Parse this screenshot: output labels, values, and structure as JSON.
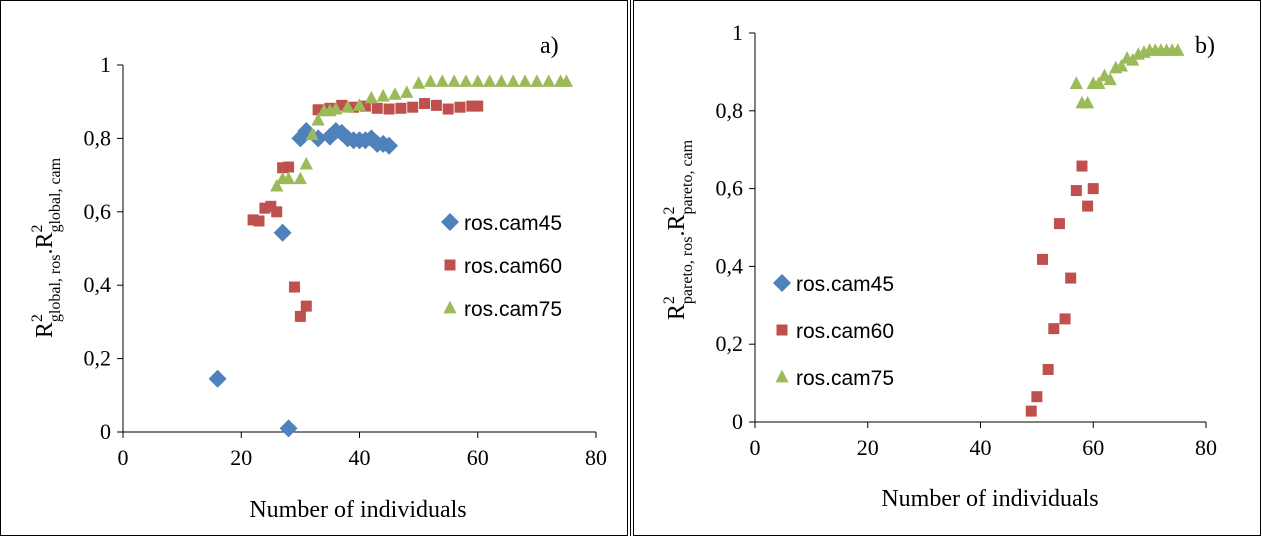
{
  "colors": {
    "ros.cam45": "#4f81bd",
    "ros.cam60": "#c0504d",
    "ros.cam75": "#9bbb59"
  },
  "chart_data": [
    {
      "type": "scatter",
      "panel_label": "a)",
      "xlabel": "Number of individuals",
      "ylabel": {
        "base": "R",
        "sup1": "2",
        "sub1": "global, ros",
        "sep": ".R",
        "sup2": "2",
        "sub2": "global, cam"
      },
      "xlim": [
        0,
        80
      ],
      "ylim": [
        0,
        1
      ],
      "xticks": [
        "0",
        "20",
        "40",
        "60",
        "80"
      ],
      "yticks": [
        "0",
        "0,2",
        "0,4",
        "0,6",
        "0,8",
        "1"
      ],
      "legend_placement": "right-middle",
      "series": [
        {
          "name": "ros.cam45",
          "marker": "diamond",
          "points": [
            [
              16,
              0.145
            ],
            [
              27,
              0.543
            ],
            [
              28,
              0.01
            ],
            [
              30,
              0.8
            ],
            [
              31,
              0.82
            ],
            [
              33,
              0.8
            ],
            [
              35,
              0.805
            ],
            [
              36,
              0.82
            ],
            [
              37,
              0.815
            ],
            [
              38,
              0.8
            ],
            [
              39,
              0.795
            ],
            [
              40,
              0.795
            ],
            [
              41,
              0.795
            ],
            [
              42,
              0.8
            ],
            [
              43,
              0.785
            ],
            [
              44,
              0.785
            ],
            [
              45,
              0.78
            ]
          ]
        },
        {
          "name": "ros.cam60",
          "marker": "square",
          "points": [
            [
              22,
              0.578
            ],
            [
              23,
              0.575
            ],
            [
              24,
              0.61
            ],
            [
              25,
              0.615
            ],
            [
              26,
              0.6
            ],
            [
              27,
              0.72
            ],
            [
              28,
              0.722
            ],
            [
              29,
              0.395
            ],
            [
              30,
              0.315
            ],
            [
              31,
              0.343
            ],
            [
              33,
              0.878
            ],
            [
              35,
              0.882
            ],
            [
              37,
              0.89
            ],
            [
              39,
              0.885
            ],
            [
              41,
              0.888
            ],
            [
              43,
              0.882
            ],
            [
              45,
              0.88
            ],
            [
              47,
              0.882
            ],
            [
              49,
              0.885
            ],
            [
              51,
              0.895
            ],
            [
              53,
              0.89
            ],
            [
              55,
              0.88
            ],
            [
              57,
              0.885
            ],
            [
              59,
              0.888
            ],
            [
              60,
              0.888
            ]
          ]
        },
        {
          "name": "ros.cam75",
          "marker": "triangle",
          "points": [
            [
              26,
              0.67
            ],
            [
              27,
              0.69
            ],
            [
              28,
              0.69
            ],
            [
              30,
              0.69
            ],
            [
              31,
              0.73
            ],
            [
              32,
              0.81
            ],
            [
              33,
              0.85
            ],
            [
              34,
              0.875
            ],
            [
              35,
              0.875
            ],
            [
              36,
              0.88
            ],
            [
              38,
              0.885
            ],
            [
              40,
              0.89
            ],
            [
              42,
              0.91
            ],
            [
              44,
              0.915
            ],
            [
              46,
              0.92
            ],
            [
              48,
              0.925
            ],
            [
              50,
              0.95
            ],
            [
              52,
              0.955
            ],
            [
              54,
              0.955
            ],
            [
              56,
              0.955
            ],
            [
              58,
              0.955
            ],
            [
              60,
              0.955
            ],
            [
              62,
              0.955
            ],
            [
              64,
              0.955
            ],
            [
              66,
              0.955
            ],
            [
              68,
              0.955
            ],
            [
              70,
              0.955
            ],
            [
              72,
              0.955
            ],
            [
              74,
              0.955
            ],
            [
              75,
              0.955
            ]
          ]
        }
      ]
    },
    {
      "type": "scatter",
      "panel_label": "b)",
      "xlabel": "Number of individuals",
      "ylabel": {
        "base": "R",
        "sup1": "2",
        "sub1": "pareto, ros",
        "sep": ".R",
        "sup2": "2",
        "sub2": "pareto, cam"
      },
      "xlim": [
        0,
        80
      ],
      "ylim": [
        0,
        1
      ],
      "xticks": [
        "0",
        "20",
        "40",
        "60",
        "80"
      ],
      "yticks": [
        "0",
        "0,2",
        "0,4",
        "0,6",
        "0,8",
        "1"
      ],
      "legend_placement": "left-middle",
      "series": [
        {
          "name": "ros.cam45",
          "marker": "diamond",
          "points": []
        },
        {
          "name": "ros.cam60",
          "marker": "square",
          "points": [
            [
              49,
              0.028
            ],
            [
              50,
              0.065
            ],
            [
              51,
              0.418
            ],
            [
              52,
              0.135
            ],
            [
              53,
              0.24
            ],
            [
              54,
              0.51
            ],
            [
              55,
              0.265
            ],
            [
              56,
              0.37
            ],
            [
              57,
              0.595
            ],
            [
              58,
              0.658
            ],
            [
              59,
              0.555
            ],
            [
              60,
              0.6
            ]
          ]
        },
        {
          "name": "ros.cam75",
          "marker": "triangle",
          "points": [
            [
              57,
              0.87
            ],
            [
              58,
              0.82
            ],
            [
              59,
              0.82
            ],
            [
              60,
              0.87
            ],
            [
              61,
              0.87
            ],
            [
              62,
              0.89
            ],
            [
              63,
              0.88
            ],
            [
              64,
              0.91
            ],
            [
              65,
              0.915
            ],
            [
              66,
              0.935
            ],
            [
              67,
              0.93
            ],
            [
              68,
              0.945
            ],
            [
              69,
              0.95
            ],
            [
              70,
              0.955
            ],
            [
              71,
              0.955
            ],
            [
              72,
              0.955
            ],
            [
              73,
              0.955
            ],
            [
              74,
              0.955
            ],
            [
              75,
              0.955
            ]
          ]
        }
      ]
    }
  ]
}
